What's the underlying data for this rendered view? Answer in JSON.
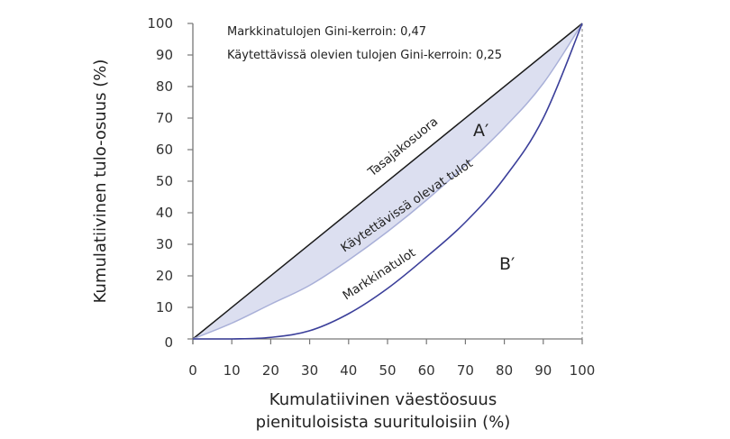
{
  "chart_data": {
    "type": "line",
    "title": "",
    "xlabel": "Kumulatiivinen väestöosuus pienituloisista suurituloisiin (%)",
    "xlabel_lines": [
      "Kumulatiivinen väestöosuus",
      "pienituloisista suurituloisiin (%)"
    ],
    "ylabel": "Kumulatiivinen tulo-osuus (%)",
    "xlim": [
      0,
      100
    ],
    "ylim": [
      0,
      100
    ],
    "x_ticks": [
      0,
      10,
      20,
      30,
      40,
      50,
      60,
      70,
      80,
      90,
      100
    ],
    "y_ticks": [
      0,
      10,
      20,
      30,
      40,
      50,
      60,
      70,
      80,
      90,
      100
    ],
    "grid": false,
    "x": [
      0,
      10,
      20,
      30,
      40,
      50,
      60,
      70,
      80,
      90,
      100
    ],
    "series": [
      {
        "name": "Tasajakosuora",
        "color": "#1a1a1a",
        "values": [
          0,
          10,
          20,
          30,
          40,
          50,
          60,
          70,
          80,
          90,
          100
        ]
      },
      {
        "name": "Käytettävissä olevat tulot",
        "color": "#a9b0d8",
        "values": [
          0,
          5,
          11,
          17,
          25,
          34,
          44,
          55,
          67,
          81,
          100
        ]
      },
      {
        "name": "Markkinatulot",
        "color": "#3b3f9a",
        "values": [
          0,
          0,
          0.5,
          2.6,
          8,
          16,
          26,
          37,
          51,
          70,
          100
        ]
      }
    ],
    "shaded_area": {
      "between": [
        "Tasajakosuora",
        "Käytettävissä olevat tulot"
      ],
      "color": "#dcdff0"
    },
    "annotations": [
      "Markkinatulojen Gini-kerroin: 0,47",
      "Käytettävissä olevien tulojen Gini-kerroin: 0,25"
    ],
    "region_labels": [
      "A′",
      "B′"
    ],
    "gini": {
      "market_income": "0,47",
      "disposable_income": "0,25"
    }
  },
  "labels": {
    "annotation_1": "Markkinatulojen Gini-kerroin: 0,47",
    "annotation_2": "Käytettävissä olevien tulojen Gini-kerroin: 0,25",
    "equality_line": "Tasajakosuora",
    "disposable_curve": "Käytettävissä olevat tulot",
    "market_curve": "Markkinatulot",
    "region_a": "A′",
    "region_b": "B′",
    "ylabel": "Kumulatiivinen tulo-osuus (%)",
    "xlabel_line1": "Kumulatiivinen väestöosuus",
    "xlabel_line2": "pienituloisista suurituloisiin (%)"
  }
}
